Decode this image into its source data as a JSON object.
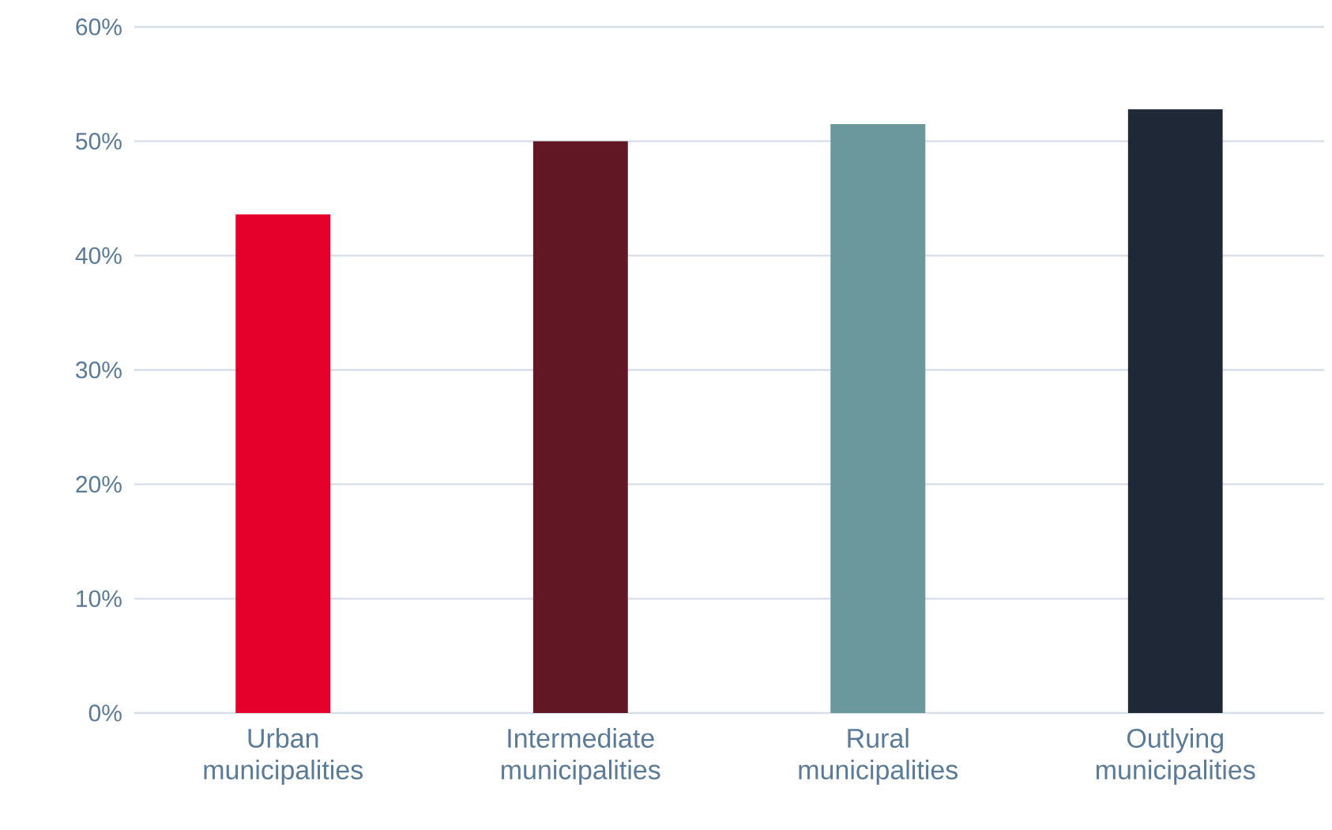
{
  "chart_data": {
    "type": "bar",
    "categories": [
      "Urban municipalities",
      "Intermediate municipalities",
      "Rural municipalities",
      "Outlying municipalities"
    ],
    "values": [
      43.6,
      50.0,
      51.5,
      52.8
    ],
    "colors": [
      "#e4002b",
      "#621824",
      "#6b989c",
      "#1e2836"
    ],
    "ylim": [
      0,
      60
    ],
    "yticks": [
      {
        "value": 0,
        "label": "0%"
      },
      {
        "value": 10,
        "label": "10%"
      },
      {
        "value": 20,
        "label": "20%"
      },
      {
        "value": 30,
        "label": "30%"
      },
      {
        "value": 40,
        "label": "40%"
      },
      {
        "value": 50,
        "label": "50%"
      },
      {
        "value": 60,
        "label": "60%"
      }
    ],
    "grid": "y"
  }
}
